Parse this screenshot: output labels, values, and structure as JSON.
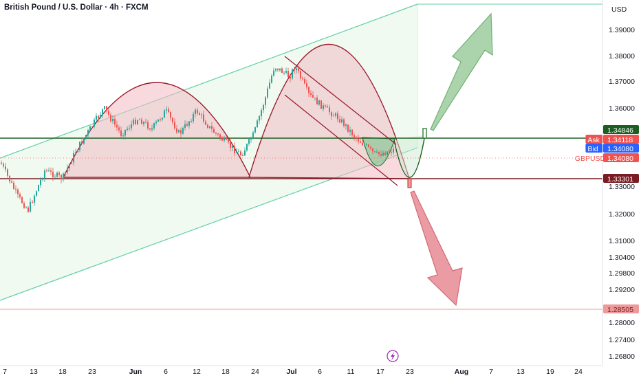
{
  "header": {
    "title": "British Pound / U.S. Dollar · 4h · FXCM",
    "currency": "USD"
  },
  "colors": {
    "up": "#26a69a",
    "down": "#ef5350",
    "channel": "#5fcfa6",
    "arc": "#9b1c2e",
    "support": "#7a1c24",
    "resistance": "#1b5e20",
    "bid": "#2962ff",
    "ask": "#ef5350"
  },
  "chart_data": {
    "type": "candlestick",
    "symbol": "GBPUSD",
    "interval": "4h",
    "source": "FXCM",
    "y_ticks": [
      1.39,
      1.38,
      1.37,
      1.36,
      1.33,
      1.32,
      1.31,
      1.304,
      1.298,
      1.292,
      1.28,
      1.274,
      1.268
    ],
    "y_tick_labels": [
      "1.39000",
      "1.38000",
      "1.37000",
      "1.36000",
      "1.33000",
      "1.32000",
      "1.31000",
      "1.30400",
      "1.29800",
      "1.29200",
      "1.28000",
      "1.27400",
      "1.26800"
    ],
    "x_ticks": [
      "7",
      "13",
      "18",
      "23",
      "Jun",
      "6",
      "12",
      "18",
      "24",
      "Jul",
      "6",
      "11",
      "17",
      "23",
      "Aug",
      "7",
      "13",
      "19",
      "24"
    ],
    "x_ticks_bold": [
      "Jun",
      "Jul",
      "Aug"
    ],
    "price_tags": [
      {
        "label": "",
        "value": "1.34846",
        "kind": "level-resistance"
      },
      {
        "label": "Ask",
        "value": "1.34118",
        "kind": "ask"
      },
      {
        "label": "Bid",
        "value": "1.34080",
        "kind": "bid"
      },
      {
        "label": "GBPUSD",
        "value": "1.34080",
        "kind": "last"
      },
      {
        "label": "",
        "value": "1.33301",
        "kind": "level-support"
      },
      {
        "label": "",
        "value": "1.28505",
        "kind": "level-target"
      }
    ],
    "levels": {
      "resistance": 1.34846,
      "support": 1.33301,
      "target_down": 1.28505,
      "last": 1.3408
    },
    "price_path_anchors": [
      {
        "x": "7",
        "y": 1.339
      },
      {
        "x": "10",
        "y": 1.326
      },
      {
        "x": "12",
        "y": 1.321
      },
      {
        "x": "15",
        "y": 1.336
      },
      {
        "x": "18",
        "y": 1.333
      },
      {
        "x": "20",
        "y": 1.344
      },
      {
        "x": "23",
        "y": 1.36
      },
      {
        "x": "26",
        "y": 1.35
      },
      {
        "x": "29",
        "y": 1.356
      },
      {
        "x": "Jun 3",
        "y": 1.352
      },
      {
        "x": "6",
        "y": 1.359
      },
      {
        "x": "9",
        "y": 1.35
      },
      {
        "x": "12",
        "y": 1.359
      },
      {
        "x": "15",
        "y": 1.352
      },
      {
        "x": "18",
        "y": 1.346
      },
      {
        "x": "22",
        "y": 1.342
      },
      {
        "x": "24",
        "y": 1.35
      },
      {
        "x": "27",
        "y": 1.364
      },
      {
        "x": "29",
        "y": 1.376
      },
      {
        "x": "Jul 1",
        "y": 1.372
      },
      {
        "x": "3",
        "y": 1.376
      },
      {
        "x": "6",
        "y": 1.365
      },
      {
        "x": "9",
        "y": 1.36
      },
      {
        "x": "12",
        "y": 1.356
      },
      {
        "x": "14",
        "y": 1.349
      },
      {
        "x": "17",
        "y": 1.342
      },
      {
        "x": "19",
        "y": 1.344
      }
    ]
  }
}
